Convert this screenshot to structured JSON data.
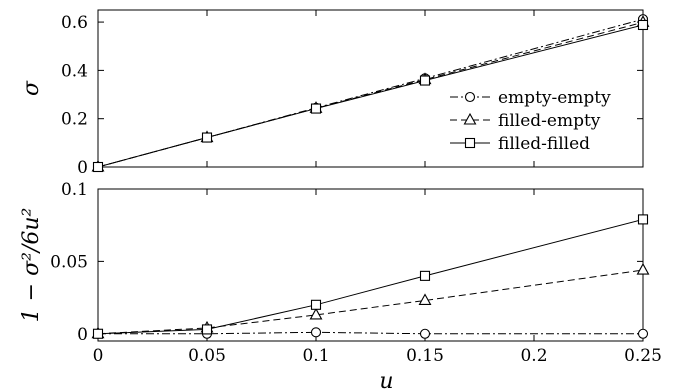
{
  "chart_data": [
    {
      "type": "line",
      "ylabel": "σ",
      "xlim": [
        0,
        0.25
      ],
      "ylim": [
        0,
        0.65
      ],
      "x_ticks": [
        "0",
        "0.05",
        "0.1",
        "0.15",
        "0.2",
        "0.25"
      ],
      "y_ticks": [
        "0",
        "0.2",
        "0.4",
        "0.6"
      ],
      "legend_position": "bottom-right",
      "series": [
        {
          "name": "empty-empty",
          "marker": "circle",
          "dash": "dash-dot",
          "x": [
            0,
            0.05,
            0.1,
            0.15,
            0.25
          ],
          "y": [
            0,
            0.122,
            0.245,
            0.367,
            0.612
          ]
        },
        {
          "name": "filled-empty",
          "marker": "triangle",
          "dash": "dashed",
          "x": [
            0,
            0.05,
            0.1,
            0.15,
            0.25
          ],
          "y": [
            0,
            0.122,
            0.243,
            0.362,
            0.599
          ]
        },
        {
          "name": "filled-filled",
          "marker": "square",
          "dash": "solid",
          "x": [
            0,
            0.05,
            0.1,
            0.15,
            0.25
          ],
          "y": [
            0,
            0.122,
            0.242,
            0.358,
            0.588
          ]
        }
      ]
    },
    {
      "type": "line",
      "xlabel": "u",
      "ylabel": "1 − σ²/6u²",
      "xlim": [
        0,
        0.25
      ],
      "ylim": [
        -0.005,
        0.1
      ],
      "x_ticks": [
        "0",
        "0.05",
        "0.1",
        "0.15",
        "0.2",
        "0.25"
      ],
      "y_ticks": [
        "0",
        "0.05",
        "0.1"
      ],
      "series": [
        {
          "name": "empty-empty",
          "marker": "circle",
          "dash": "dash-dot",
          "x": [
            0,
            0.05,
            0.1,
            0.15,
            0.25
          ],
          "y": [
            0,
            0,
            0.001,
            0,
            0
          ]
        },
        {
          "name": "filled-empty",
          "marker": "triangle",
          "dash": "dashed",
          "x": [
            0,
            0.05,
            0.1,
            0.15,
            0.25
          ],
          "y": [
            0,
            0.004,
            0.013,
            0.023,
            0.044
          ]
        },
        {
          "name": "filled-filled",
          "marker": "square",
          "dash": "solid",
          "x": [
            0,
            0.05,
            0.1,
            0.15,
            0.25
          ],
          "y": [
            0,
            0.003,
            0.02,
            0.04,
            0.079
          ]
        }
      ]
    }
  ]
}
